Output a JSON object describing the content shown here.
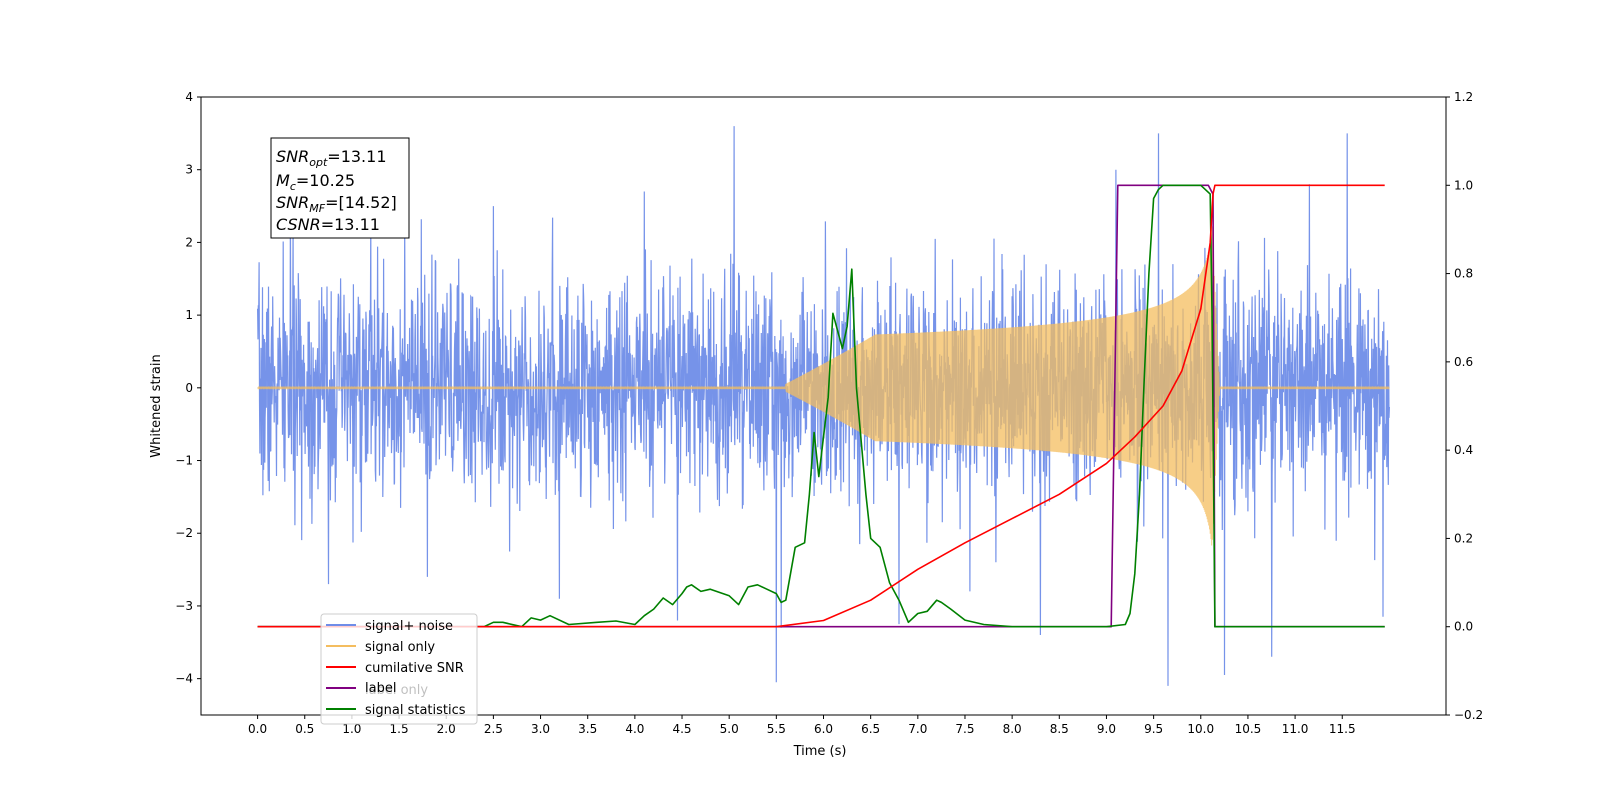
{
  "chart_data": {
    "type": "line",
    "xlabel": "Time (s)",
    "ylabel": "Whitened strain",
    "xlim": [
      -0.6,
      12.6
    ],
    "ylim": [
      -4.5,
      4.0
    ],
    "y2lim": [
      -0.2,
      1.2
    ],
    "x_ticks": [
      0.0,
      0.5,
      1.0,
      1.5,
      2.0,
      2.5,
      3.0,
      3.5,
      4.0,
      4.5,
      5.0,
      5.5,
      6.0,
      6.5,
      7.0,
      7.5,
      8.0,
      8.5,
      9.0,
      9.5,
      10.0,
      10.5,
      11.0,
      11.5
    ],
    "x_tick_labels": [
      "0.0",
      "0.5",
      "1.0",
      "1.5",
      "2.0",
      "2.5",
      "3.0",
      "3.5",
      "4.0",
      "4.5",
      "5.0",
      "5.5",
      "6.0",
      "6.5",
      "7.0",
      "7.5",
      "8.0",
      "8.5",
      "9.0",
      "9.5",
      "10.0",
      "10.5",
      "11.0",
      "11.5"
    ],
    "y_ticks": [
      4,
      3,
      2,
      1,
      0,
      -1,
      -2,
      -3,
      -4
    ],
    "y_tick_labels": [
      "4",
      "3",
      "2",
      "1",
      "0",
      "−1",
      "−2",
      "−3",
      "−4"
    ],
    "y2_ticks": [
      1.2,
      1.0,
      0.8,
      0.6,
      0.4,
      0.2,
      0.0,
      -0.2
    ],
    "y2_tick_labels": [
      "1.2",
      "1.0",
      "0.8",
      "0.6",
      "0.4",
      "0.2",
      "0.0",
      "−0.2"
    ],
    "grid": false,
    "legend_position": "lower-left",
    "annotation_lines": [
      "SNR",
      "opt",
      "=13.11",
      "M",
      "c",
      "=10.25",
      "SNR",
      "MF",
      "=[14.52]",
      "CSNR",
      "=13.11"
    ],
    "noise": {
      "seed": 7,
      "t_start": 0.0,
      "t_end": 12.0,
      "sample_step": 0.004,
      "sigma": 0.75,
      "spikes": [
        [
          0.35,
          2.6
        ],
        [
          0.75,
          -2.7
        ],
        [
          1.2,
          2.3
        ],
        [
          1.8,
          -2.6
        ],
        [
          2.5,
          2.5
        ],
        [
          3.2,
          -2.9
        ],
        [
          4.1,
          2.7
        ],
        [
          4.45,
          -3.2
        ],
        [
          5.05,
          3.6
        ],
        [
          5.5,
          -4.05
        ],
        [
          5.55,
          -3.3
        ],
        [
          6.8,
          -3.25
        ],
        [
          7.55,
          -2.8
        ],
        [
          8.3,
          -3.4
        ],
        [
          9.1,
          3.0
        ],
        [
          9.55,
          3.5
        ],
        [
          9.65,
          -4.1
        ],
        [
          10.25,
          -3.95
        ],
        [
          10.75,
          -3.7
        ],
        [
          11.15,
          2.8
        ],
        [
          11.55,
          3.5
        ],
        [
          11.93,
          -3.15
        ]
      ]
    },
    "chirp": {
      "t_start": 5.6,
      "t_merge": 10.12,
      "t_end": 10.2,
      "peak_amplitude": 2.2,
      "baseline_amplitude": 0.02
    },
    "series": [
      {
        "name": "signal+ noise",
        "color": "#6f8de8",
        "axis": "left",
        "kind": "noise"
      },
      {
        "name": "signal only",
        "color": "#f4bd5f",
        "axis": "left",
        "kind": "chirp"
      },
      {
        "name": "cumilative SNR",
        "color": "#ff0000",
        "axis": "right",
        "x": [
          0.0,
          5.5,
          6.0,
          6.5,
          7.0,
          7.5,
          8.0,
          8.5,
          9.0,
          9.3,
          9.6,
          9.8,
          10.0,
          10.1,
          10.13,
          10.15,
          11.95
        ],
        "values": [
          0.0,
          0.0,
          0.014,
          0.06,
          0.13,
          0.19,
          0.245,
          0.3,
          0.37,
          0.43,
          0.5,
          0.58,
          0.72,
          0.87,
          0.98,
          1.0,
          1.0
        ]
      },
      {
        "name": "label",
        "color": "#800080",
        "axis": "right",
        "x": [
          0.0,
          9.05,
          9.12,
          10.08,
          10.13,
          10.15,
          11.95
        ],
        "values": [
          0.0,
          0.0,
          1.0,
          1.0,
          0.98,
          0.0,
          0.0
        ]
      },
      {
        "name": "label only",
        "color": "#aaaaaa",
        "axis": "right",
        "legend_only": true
      },
      {
        "name": "signal statistics",
        "color": "#008000",
        "axis": "right",
        "x": [
          0.0,
          2.4,
          2.5,
          2.6,
          2.8,
          2.9,
          3.0,
          3.1,
          3.3,
          3.6,
          3.8,
          4.0,
          4.1,
          4.2,
          4.3,
          4.4,
          4.5,
          4.55,
          4.6,
          4.7,
          4.8,
          5.0,
          5.1,
          5.2,
          5.3,
          5.4,
          5.5,
          5.55,
          5.6,
          5.7,
          5.8,
          5.85,
          5.9,
          5.95,
          6.0,
          6.05,
          6.1,
          6.2,
          6.25,
          6.3,
          6.35,
          6.45,
          6.5,
          6.6,
          6.7,
          6.8,
          6.9,
          7.0,
          7.1,
          7.2,
          7.25,
          7.35,
          7.5,
          7.7,
          8.0,
          9.0,
          9.2,
          9.25,
          9.3,
          9.35,
          9.4,
          9.45,
          9.5,
          9.55,
          9.6,
          9.7,
          9.8,
          10.0,
          10.1,
          10.12,
          10.15,
          10.2,
          11.95
        ],
        "values": [
          0.0,
          0.0,
          0.01,
          0.01,
          0.0,
          0.02,
          0.015,
          0.025,
          0.005,
          0.01,
          0.013,
          0.005,
          0.025,
          0.04,
          0.065,
          0.05,
          0.075,
          0.09,
          0.095,
          0.08,
          0.085,
          0.07,
          0.05,
          0.09,
          0.095,
          0.085,
          0.075,
          0.055,
          0.06,
          0.18,
          0.19,
          0.3,
          0.44,
          0.34,
          0.43,
          0.52,
          0.71,
          0.63,
          0.68,
          0.81,
          0.54,
          0.3,
          0.2,
          0.18,
          0.1,
          0.06,
          0.01,
          0.03,
          0.035,
          0.06,
          0.055,
          0.04,
          0.015,
          0.005,
          0.0,
          0.0,
          0.005,
          0.03,
          0.12,
          0.3,
          0.56,
          0.8,
          0.97,
          0.99,
          1.0,
          1.0,
          1.0,
          1.0,
          0.98,
          0.7,
          0.0,
          0.0,
          0.0
        ]
      }
    ]
  }
}
